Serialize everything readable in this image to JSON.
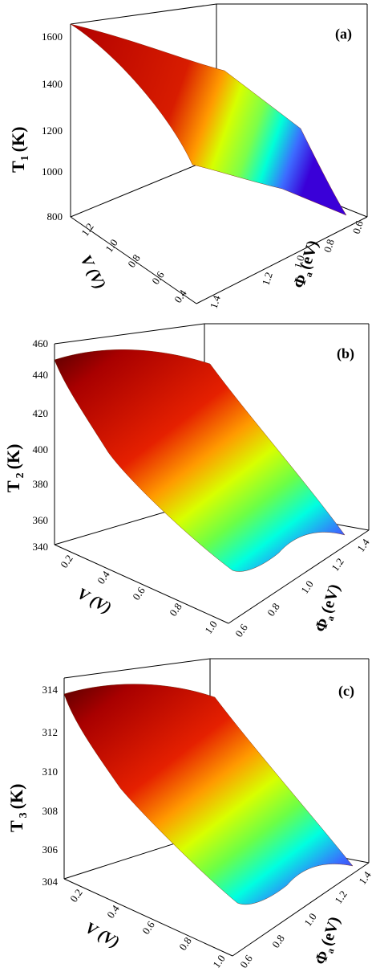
{
  "colors": {
    "low": "#3a00ff",
    "mid_low": "#00ffff",
    "mid": "#c8ff00",
    "mid_high": "#ff8c00",
    "high": "#c80000",
    "top": "#5a0000"
  },
  "chart_data": [
    {
      "type": "surface",
      "panel_label": "(a)",
      "zlabel_main": "T",
      "zlabel_sub": "1",
      "zlabel_unit": "(K)",
      "vlabel": "V (V)",
      "philabel_main": "Φ",
      "philabel_sub": "a",
      "philabel_unit": "(eV)",
      "z_ticks": [
        "1600",
        "1400",
        "1200",
        "1000",
        "800"
      ],
      "v_ticks": [
        "1.2",
        "1.0",
        "0.8",
        "0.6",
        "0.4"
      ],
      "phi_ticks": [
        "0.6",
        "0.8",
        "1.0",
        "1.2",
        "1.4"
      ],
      "zlim": [
        800,
        1650
      ],
      "surface_corners": {
        "v0.2_phi1.4": 1660,
        "v0.4_phi1.4": 1480,
        "v1.2_phi0.6": 880
      }
    },
    {
      "type": "surface",
      "panel_label": "(b)",
      "zlabel_main": "T",
      "zlabel_sub": "2",
      "zlabel_unit": "(K)",
      "vlabel": "V (V)",
      "philabel_main": "Φ",
      "philabel_sub": "a",
      "philabel_unit": "(eV)",
      "z_ticks": [
        "460",
        "440",
        "420",
        "400",
        "380",
        "360",
        "340"
      ],
      "v_ticks": [
        "0.2",
        "0.4",
        "0.6",
        "0.8",
        "1.0"
      ],
      "phi_ticks": [
        "0.6",
        "0.8",
        "1.0",
        "1.2",
        "1.4"
      ],
      "zlim": [
        340,
        460
      ],
      "surface_corners": {
        "max": 455,
        "min": 345
      }
    },
    {
      "type": "surface",
      "panel_label": "(c)",
      "zlabel_main": "T",
      "zlabel_sub": "3",
      "zlabel_unit": "(K)",
      "vlabel": "V (V)",
      "philabel_main": "Φ",
      "philabel_sub": "a",
      "philabel_unit": "(eV)",
      "z_ticks": [
        "314",
        "312",
        "310",
        "308",
        "306",
        "304"
      ],
      "v_ticks": [
        "0.2",
        "0.4",
        "0.6",
        "0.8",
        "1.0"
      ],
      "phi_ticks": [
        "0.6",
        "0.8",
        "1.0",
        "1.2",
        "1.4"
      ],
      "zlim": [
        304,
        314.5
      ],
      "surface_corners": {
        "max": 314.5,
        "min": 304.8
      }
    }
  ]
}
